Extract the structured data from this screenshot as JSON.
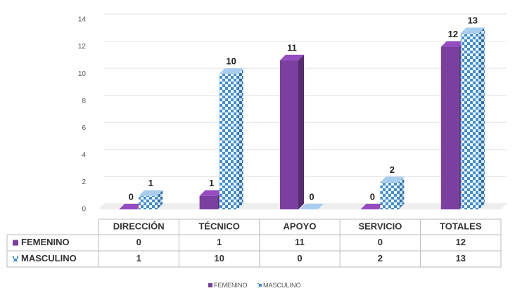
{
  "chart_data": {
    "type": "bar3d",
    "categories": [
      "DIRECCIÓN",
      "TÉCNICO",
      "APOYO",
      "SERVICIO",
      "TOTALES"
    ],
    "series": [
      {
        "name": "FEMENINO",
        "color": "#7b3fa0",
        "values": [
          0,
          1,
          11,
          0,
          12
        ]
      },
      {
        "name": "MASCULINO",
        "color": "#3c8fd8",
        "values": [
          1,
          10,
          0,
          2,
          13
        ]
      }
    ],
    "ylim": [
      0,
      14
    ],
    "yticks": [
      0,
      2,
      4,
      6,
      8,
      10,
      12,
      14
    ],
    "grid": true,
    "legend": "bottom"
  }
}
